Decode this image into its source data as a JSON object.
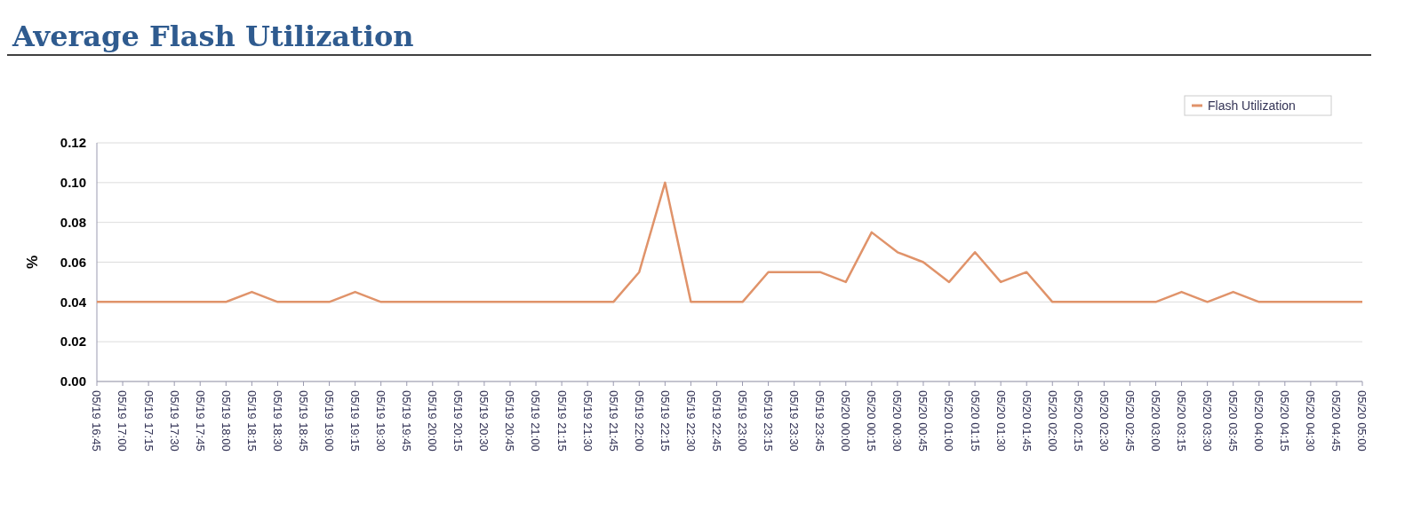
{
  "chart_data": {
    "type": "line",
    "title": "Average Flash Utilization",
    "ylabel": "%",
    "categories": [
      "05/19 16:45",
      "05/19 17:00",
      "05/19 17:15",
      "05/19 17:30",
      "05/19 17:45",
      "05/19 18:00",
      "05/19 18:15",
      "05/19 18:30",
      "05/19 18:45",
      "05/19 19:00",
      "05/19 19:15",
      "05/19 19:30",
      "05/19 19:45",
      "05/19 20:00",
      "05/19 20:15",
      "05/19 20:30",
      "05/19 20:45",
      "05/19 21:00",
      "05/19 21:15",
      "05/19 21:30",
      "05/19 21:45",
      "05/19 22:00",
      "05/19 22:15",
      "05/19 22:30",
      "05/19 22:45",
      "05/19 23:00",
      "05/19 23:15",
      "05/19 23:30",
      "05/19 23:45",
      "05/20 00:00",
      "05/20 00:15",
      "05/20 00:30",
      "05/20 00:45",
      "05/20 01:00",
      "05/20 01:15",
      "05/20 01:30",
      "05/20 01:45",
      "05/20 02:00",
      "05/20 02:15",
      "05/20 02:30",
      "05/20 02:45",
      "05/20 03:00",
      "05/20 03:15",
      "05/20 03:30",
      "05/20 03:45",
      "05/20 04:00",
      "05/20 04:15",
      "05/20 04:30",
      "05/20 04:45",
      "05/20 05:00"
    ],
    "series": [
      {
        "name": "Flash Utilization",
        "color": "#e0936a",
        "values": [
          0.04,
          0.04,
          0.04,
          0.04,
          0.04,
          0.04,
          0.045,
          0.04,
          0.04,
          0.04,
          0.045,
          0.04,
          0.04,
          0.04,
          0.04,
          0.04,
          0.04,
          0.04,
          0.04,
          0.04,
          0.04,
          0.055,
          0.1,
          0.04,
          0.04,
          0.04,
          0.055,
          0.055,
          0.055,
          0.05,
          0.075,
          0.065,
          0.06,
          0.05,
          0.065,
          0.05,
          0.055,
          0.04,
          0.04,
          0.04,
          0.04,
          0.04,
          0.045,
          0.04,
          0.045,
          0.04,
          0.04,
          0.04,
          0.04,
          0.04
        ]
      }
    ],
    "ylim": [
      0,
      0.12
    ],
    "yticks": [
      {
        "value": 0,
        "label": "0.00"
      },
      {
        "value": 0.02,
        "label": "0.02"
      },
      {
        "value": 0.04,
        "label": "0.04"
      },
      {
        "value": 0.06,
        "label": "0.06"
      },
      {
        "value": 0.08,
        "label": "0.08"
      },
      {
        "value": 0.1,
        "label": "0.10"
      },
      {
        "value": 0.12,
        "label": "0.12"
      }
    ],
    "grid": "y",
    "legend": "top right",
    "marker": "none",
    "line_style": "solid"
  }
}
